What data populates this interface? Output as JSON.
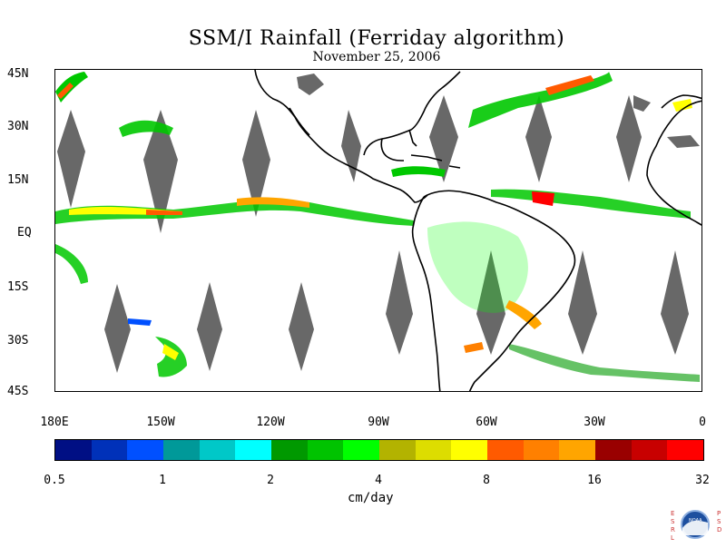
{
  "title": "SSM/I Rainfall (Ferriday algorithm)",
  "date": "November 25, 2006",
  "lat_labels": [
    "45N",
    "30N",
    "15N",
    "EQ",
    "15S",
    "30S",
    "45S"
  ],
  "lon_labels": [
    "180E",
    "150W",
    "120W",
    "90W",
    "60W",
    "30W",
    "0"
  ],
  "colorbar": {
    "colors": [
      "#000f84",
      "#0031b9",
      "#0050ff",
      "#009999",
      "#00c8c8",
      "#00ffff",
      "#009900",
      "#00c300",
      "#00ff00",
      "#b3b300",
      "#dddd00",
      "#ffff00",
      "#ff5a00",
      "#ff8000",
      "#ffa500",
      "#990000",
      "#c80000",
      "#ff0000"
    ],
    "tick_labels": [
      "0.5",
      "1",
      "2",
      "4",
      "8",
      "16",
      "32"
    ],
    "units": "cm/day"
  },
  "logo": {
    "left_letters": "ESRL",
    "right_letters": "PSD",
    "center_text": "NOAA"
  },
  "map": {
    "lat_range": [
      -45,
      45
    ],
    "lon_range": [
      -180,
      0
    ],
    "no_data_color": "#686868",
    "coastline_color": "#000000"
  }
}
